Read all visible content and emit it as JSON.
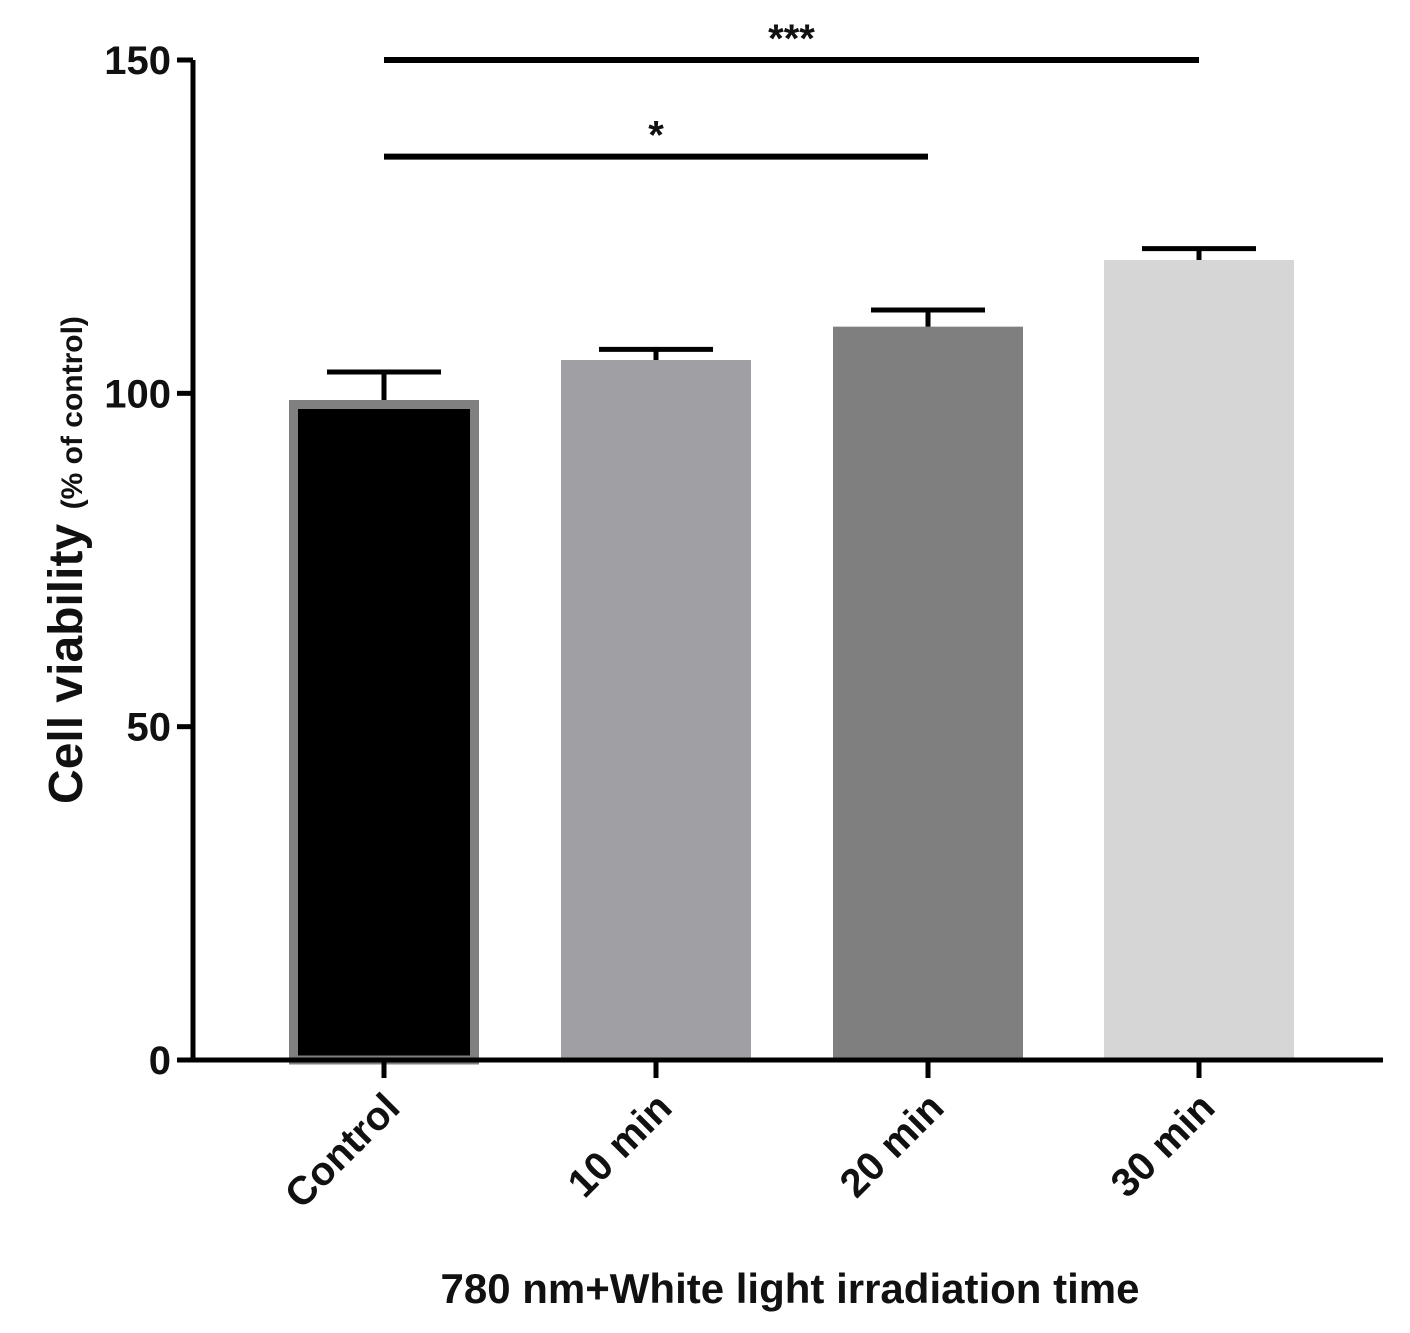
{
  "chart_data": {
    "type": "bar",
    "title": "",
    "xlabel": "780 nm+White light irradiation time",
    "ylabel_main": "Cell viability",
    "ylabel_sub": "(% of control)",
    "categories": [
      "Control",
      "10 min",
      "20 min",
      "30 min"
    ],
    "values": [
      99,
      105,
      110,
      120
    ],
    "errors": [
      4.2,
      1.6,
      2.5,
      1.7
    ],
    "colors": [
      "#000000",
      "#a0a0a4",
      "#7f7f7f",
      "#d6d6d6"
    ],
    "outline_colors": [
      "#808080",
      null,
      null,
      null
    ],
    "ylim": [
      0,
      150
    ],
    "yticks": [
      0,
      50,
      100,
      150
    ],
    "ytick_labels": [
      "0",
      "50",
      "100",
      "150"
    ],
    "significance": [
      {
        "from": 0,
        "to": 3,
        "label": "***",
        "level": 150
      },
      {
        "from": 0,
        "to": 2,
        "label": "*",
        "level": 135.5
      }
    ],
    "grid": false,
    "legend": "none"
  }
}
